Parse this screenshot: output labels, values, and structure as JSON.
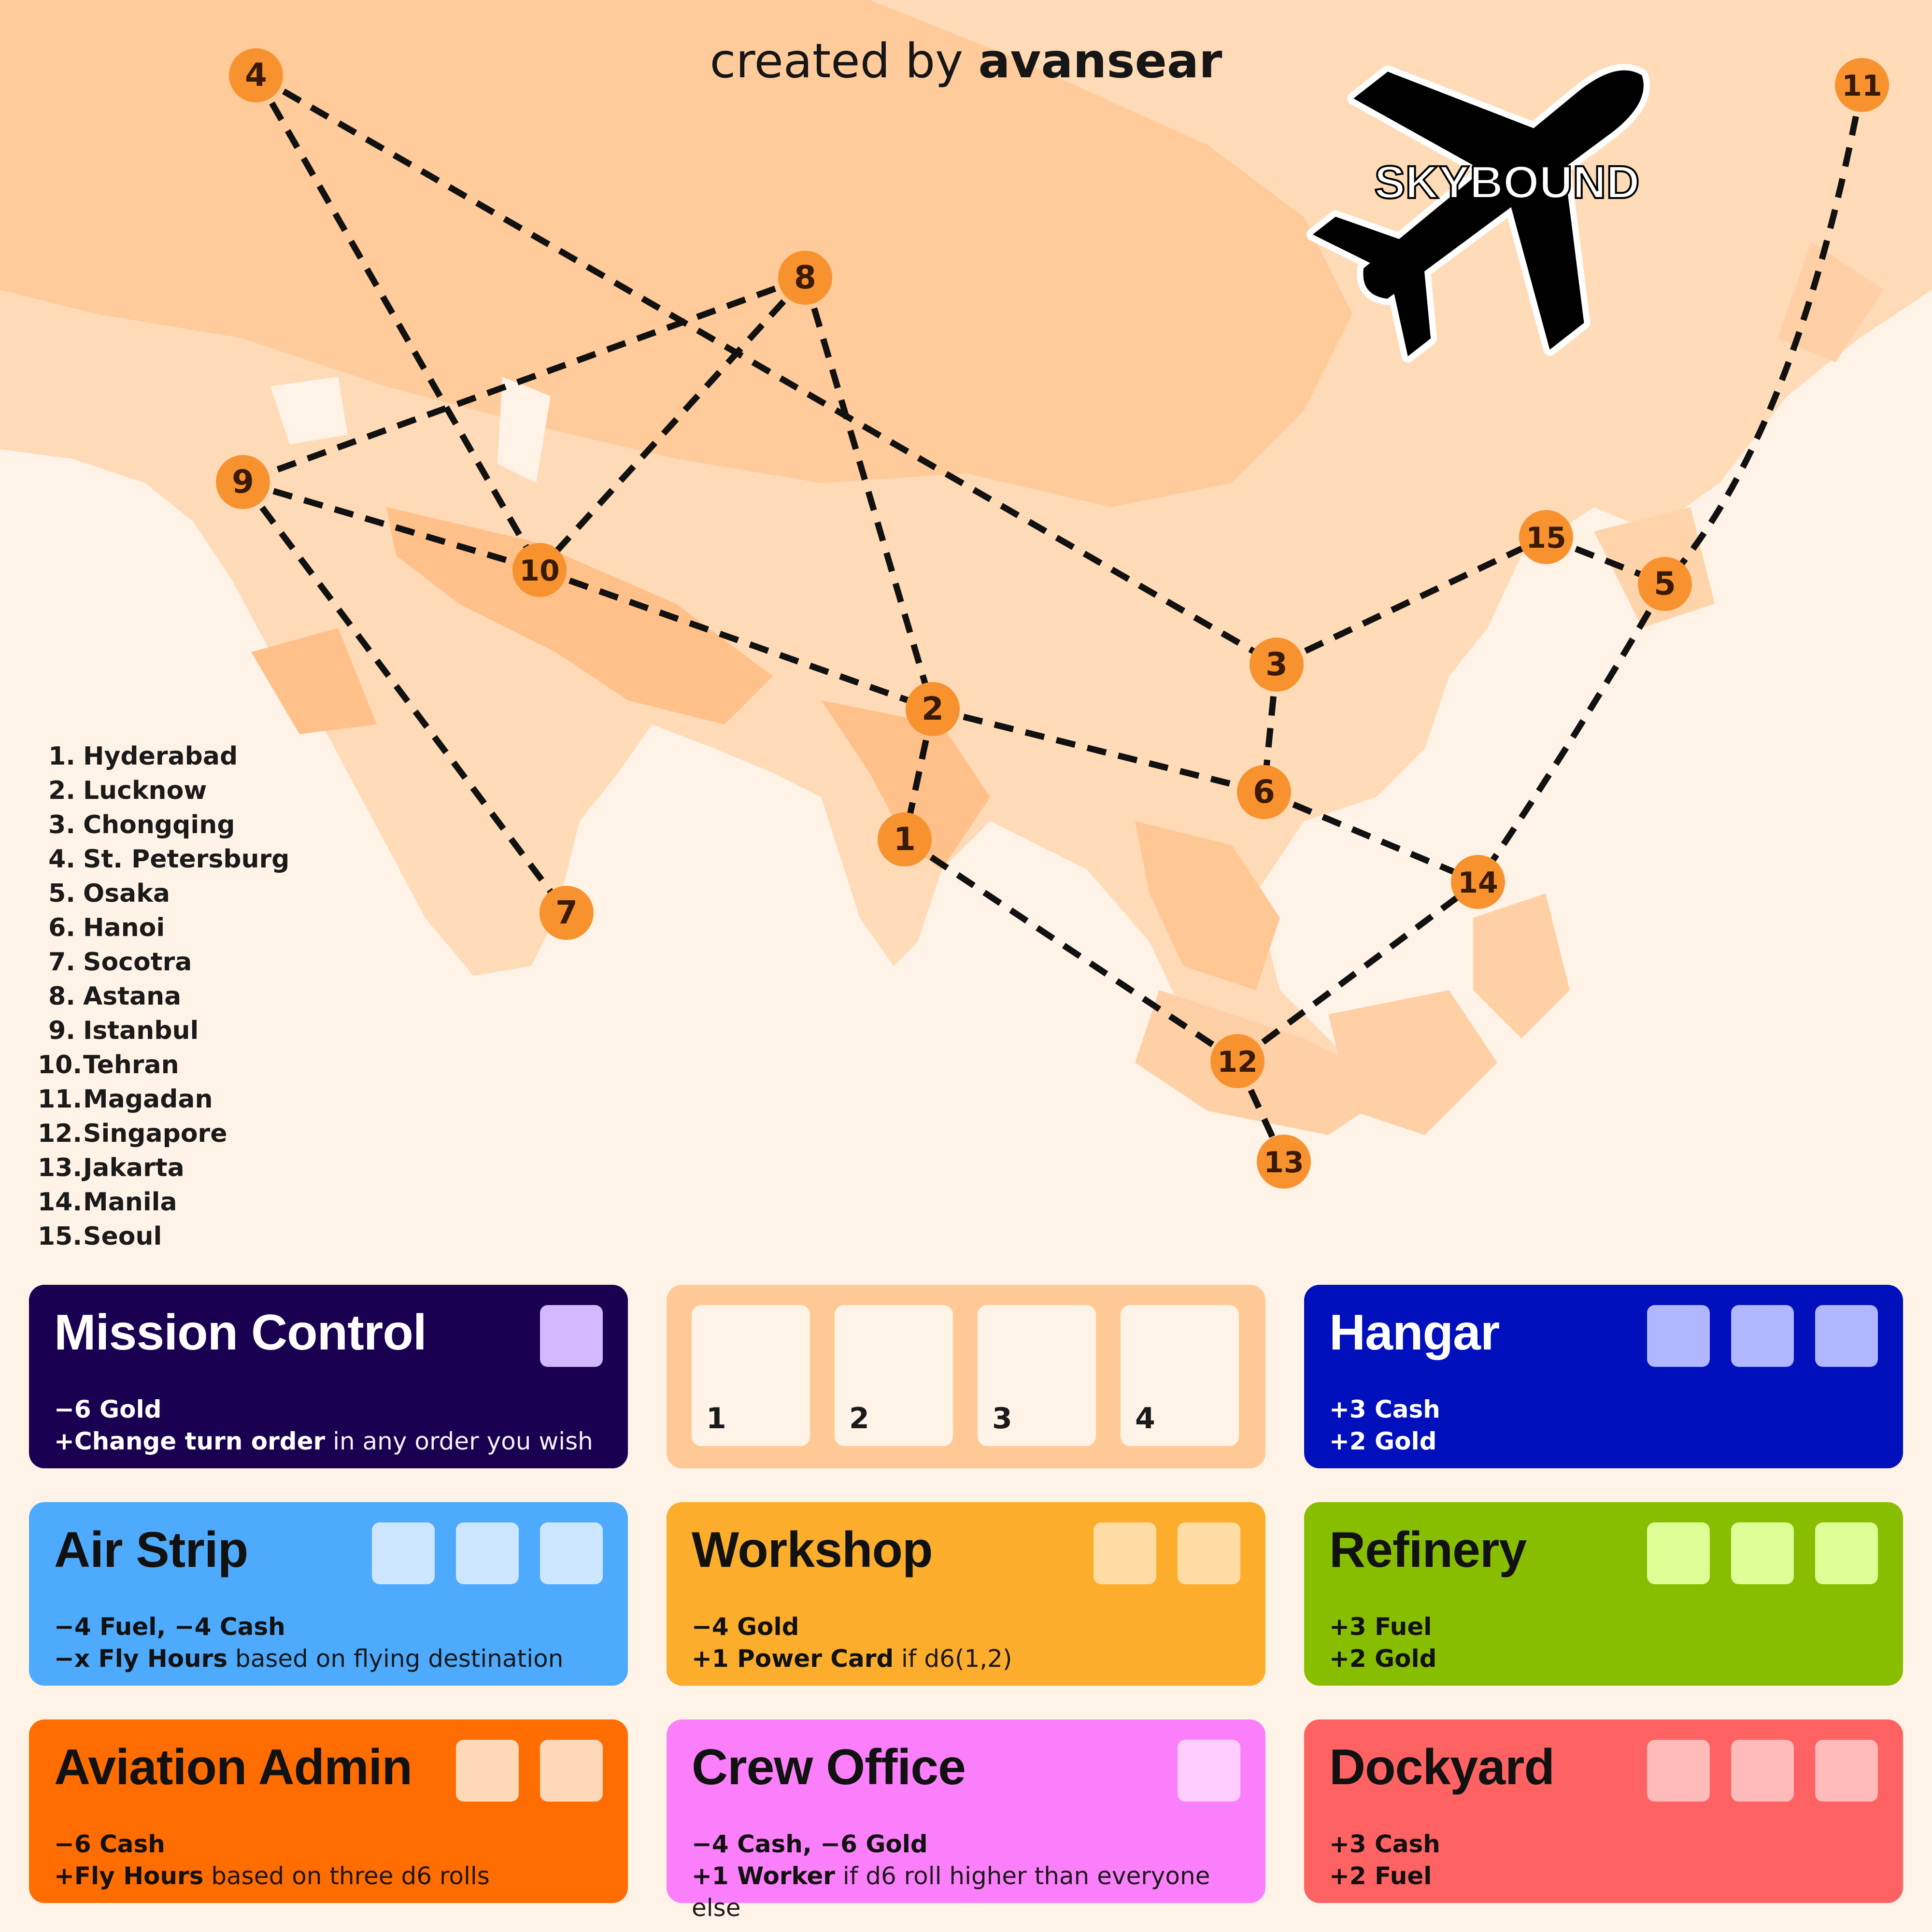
{
  "credit": {
    "prefix": "created by",
    "author": "avansear"
  },
  "logo_text": "SKYBOUND",
  "cities": [
    {
      "num": "1.",
      "name": "Hyderabad"
    },
    {
      "num": "2.",
      "name": "Lucknow"
    },
    {
      "num": "3.",
      "name": "Chongqing"
    },
    {
      "num": "4.",
      "name": "St. Petersburg"
    },
    {
      "num": "5.",
      "name": "Osaka"
    },
    {
      "num": "6.",
      "name": "Hanoi"
    },
    {
      "num": "7.",
      "name": "Socotra"
    },
    {
      "num": "8.",
      "name": "Astana"
    },
    {
      "num": "9.",
      "name": "Istanbul"
    },
    {
      "num": "10.",
      "name": "Tehran"
    },
    {
      "num": "11.",
      "name": "Magadan"
    },
    {
      "num": "12.",
      "name": "Singapore"
    },
    {
      "num": "13.",
      "name": "Jakarta"
    },
    {
      "num": "14.",
      "name": "Manila"
    },
    {
      "num": "15.",
      "name": "Seoul"
    }
  ],
  "map_nodes": [
    "1",
    "2",
    "3",
    "4",
    "5",
    "6",
    "7",
    "8",
    "9",
    "10",
    "11",
    "12",
    "13",
    "14",
    "15"
  ],
  "routes": [
    [
      "4",
      "10"
    ],
    [
      "4",
      "3"
    ],
    [
      "8",
      "9"
    ],
    [
      "8",
      "10"
    ],
    [
      "8",
      "2"
    ],
    [
      "9",
      "10"
    ],
    [
      "9",
      "7"
    ],
    [
      "10",
      "2"
    ],
    [
      "2",
      "1"
    ],
    [
      "2",
      "6"
    ],
    [
      "3",
      "6"
    ],
    [
      "3",
      "15"
    ],
    [
      "15",
      "5"
    ],
    [
      "11",
      "5"
    ],
    [
      "5",
      "14"
    ],
    [
      "6",
      "14"
    ],
    [
      "1",
      "12"
    ],
    [
      "12",
      "14"
    ],
    [
      "12",
      "13"
    ]
  ],
  "turn_track": [
    "1",
    "2",
    "3",
    "4"
  ],
  "colors": {
    "node": "#f7922f",
    "route": "#111111",
    "map_land": "#ffc58f",
    "mission_control": "#1a0050",
    "hangar": "#0010bd",
    "air_strip": "#4eaafc",
    "workshop": "#fbad2b",
    "refinery": "#87be00",
    "aviation_admin": "#ff6c00",
    "crew_office": "#fb7ffb",
    "dockyard": "#fe6262",
    "track": "#ffc996"
  },
  "cards": {
    "mission_control": {
      "title": "Mission Control",
      "line1_bold": "−6 Gold",
      "line2_bold": "+Change turn order",
      "line2_rest": " in any order you wish",
      "slots": 1
    },
    "hangar": {
      "title": "Hangar",
      "line1_bold": "+3 Cash",
      "line2_bold": "+2 Gold",
      "line2_rest": "",
      "slots": 3
    },
    "air_strip": {
      "title": "Air Strip",
      "line1_bold": "−4 Fuel, −4 Cash",
      "line2_bold": "−x Fly Hours",
      "line2_rest": " based on flying destination",
      "slots": 3
    },
    "workshop": {
      "title": "Workshop",
      "line1_bold": "−4 Gold",
      "line2_bold": "+1 Power Card",
      "line2_rest": " if d6(1,2)",
      "slots": 2
    },
    "refinery": {
      "title": "Refinery",
      "line1_bold": "+3 Fuel",
      "line2_bold": "+2 Gold",
      "line2_rest": "",
      "slots": 3
    },
    "aviation_admin": {
      "title": "Aviation Admin",
      "line1_bold": "−6 Cash",
      "line2_bold": "+Fly Hours",
      "line2_rest": " based on three d6 rolls",
      "slots": 2
    },
    "crew_office": {
      "title": "Crew Office",
      "line1_bold": "−4 Cash, −6 Gold",
      "line2_bold": "+1 Worker",
      "line2_rest": " if d6 roll higher than everyone else",
      "slots": 1
    },
    "dockyard": {
      "title": "Dockyard",
      "line1_bold": "+3 Cash",
      "line2_bold": "+2 Fuel",
      "line2_rest": "",
      "slots": 3
    }
  }
}
